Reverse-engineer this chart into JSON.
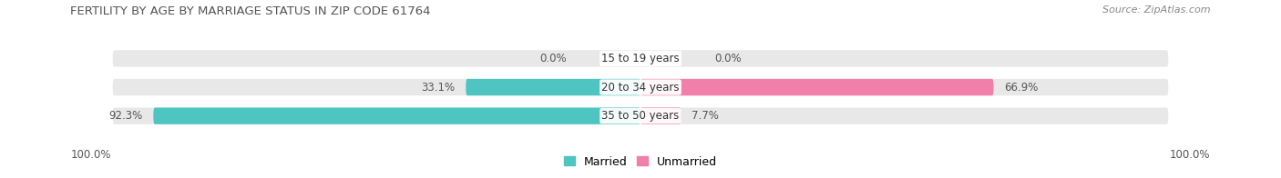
{
  "title": "FERTILITY BY AGE BY MARRIAGE STATUS IN ZIP CODE 61764",
  "source": "Source: ZipAtlas.com",
  "categories": [
    "15 to 19 years",
    "20 to 34 years",
    "35 to 50 years"
  ],
  "married": [
    0.0,
    33.1,
    92.3
  ],
  "unmarried": [
    0.0,
    66.9,
    7.7
  ],
  "married_color": "#4EC5C1",
  "unmarried_color": "#F07FAA",
  "bar_bg_color": "#E8E8E8",
  "bar_height": 0.58,
  "xlim": 100.0,
  "title_fontsize": 9.5,
  "source_fontsize": 8,
  "label_fontsize": 8.5,
  "category_fontsize": 8.5,
  "tick_fontsize": 8.5,
  "legend_fontsize": 9,
  "fig_bg_color": "#FFFFFF",
  "axis_bg_color": "#FFFFFF"
}
